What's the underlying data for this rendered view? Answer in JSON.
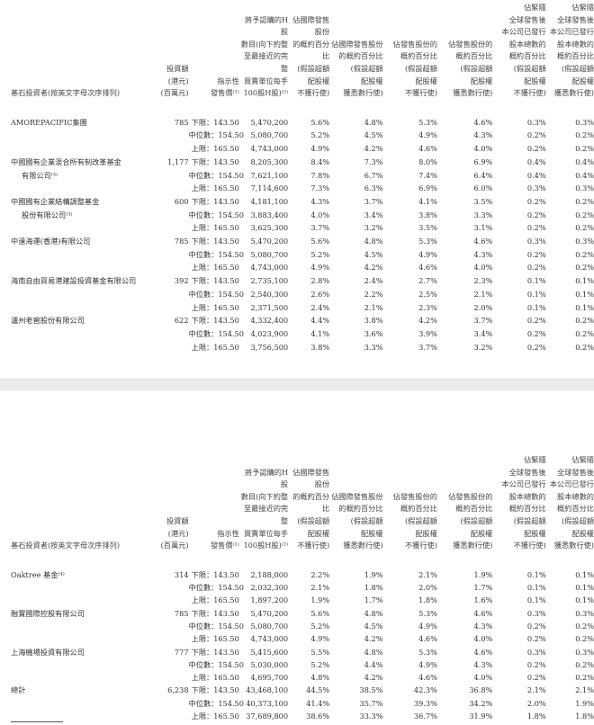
{
  "headers": {
    "name": "基石投資者(按英文字母次序排列)",
    "amount": "投資額(港元)\n(百萬元)",
    "price": "指示性\n發售價⁽¹⁾",
    "shares": "將予認購的H股\n數目(向下約整\n至最接近的完整\n買賣單位每手\n100股H股)⁽²⁾",
    "p1": "佔國際發售股份\n的概約百分比\n(假設超額\n配股權\n不獲行使)",
    "p2": "佔國際發售股份\n的概約百分比\n(假設超額\n配股權\n獲悉數行使)",
    "p3": "佔發售股份的\n概約百分比\n(假設超額\n配股權\n不獲行使)",
    "p4": "佔發售股份的\n概約百分比\n(假設超額\n配股權\n獲悉數行使)",
    "p5": "佔緊隨\n全球發售後\n本公司已發行\n股本總數的\n概約百分比\n(假設超額\n配股權\n不獲行使)",
    "p6": "佔緊隨\n全球發售後\n本公司已發行\n股本總數的\n概約百分比\n(假設超額\n配股權\n獲悉數行使)"
  },
  "tables": [
    {
      "investors": [
        {
          "name_lines": [
            "AMOREPACIFIC集團"
          ],
          "amount": "785",
          "rows": [
            {
              "price": "下限：143.50",
              "shares": "5,470,200",
              "pcts": [
                "5.6%",
                "4.8%",
                "5.3%",
                "4.6%",
                "0.3%",
                "0.3%"
              ]
            },
            {
              "price": "中位數：154.50",
              "shares": "5,080,700",
              "pcts": [
                "5.2%",
                "4.5%",
                "4.9%",
                "4.3%",
                "0.2%",
                "0.2%"
              ]
            },
            {
              "price": "上限：165.50",
              "shares": "4,743,000",
              "pcts": [
                "4.9%",
                "4.2%",
                "4.6%",
                "4.0%",
                "0.2%",
                "0.2%"
              ]
            }
          ]
        },
        {
          "name_lines": [
            "中國國有企業混合所有制改革基金",
            "有限公司⁽³⁾"
          ],
          "amount": "1,177",
          "rows": [
            {
              "price": "下限：143.50",
              "shares": "8,205,300",
              "pcts": [
                "8.4%",
                "7.3%",
                "8.0%",
                "6.9%",
                "0.4%",
                "0.4%"
              ]
            },
            {
              "price": "中位數：154.50",
              "shares": "7,621,100",
              "pcts": [
                "7.8%",
                "6.7%",
                "7.4%",
                "6.4%",
                "0.4%",
                "0.4%"
              ]
            },
            {
              "price": "上限：165.50",
              "shares": "7,114,600",
              "pcts": [
                "7.3%",
                "6.3%",
                "6.9%",
                "6.0%",
                "0.3%",
                "0.3%"
              ]
            }
          ]
        },
        {
          "name_lines": [
            "中國國有企業結構調整基金",
            "股份有限公司⁽³⁾"
          ],
          "amount": "600",
          "rows": [
            {
              "price": "下限：143.50",
              "shares": "4,181,100",
              "pcts": [
                "4.3%",
                "3.7%",
                "4.1%",
                "3.5%",
                "0.2%",
                "0.2%"
              ]
            },
            {
              "price": "中位數：154.50",
              "shares": "3,883,400",
              "pcts": [
                "4.0%",
                "3.4%",
                "3.8%",
                "3.3%",
                "0.2%",
                "0.2%"
              ]
            },
            {
              "price": "上限：165.50",
              "shares": "3,625,300",
              "pcts": [
                "3.7%",
                "3.2%",
                "3.5%",
                "3.1%",
                "0.2%",
                "0.2%"
              ]
            }
          ]
        },
        {
          "name_lines": [
            "中遠海運(香港)有限公司"
          ],
          "amount": "785",
          "rows": [
            {
              "price": "下限：143.50",
              "shares": "5,470,200",
              "pcts": [
                "5.6%",
                "4.8%",
                "5.3%",
                "4.6%",
                "0.3%",
                "0.3%"
              ]
            },
            {
              "price": "中位數：154.50",
              "shares": "5,080,700",
              "pcts": [
                "5.2%",
                "4.5%",
                "4.9%",
                "4.3%",
                "0.2%",
                "0.2%"
              ]
            },
            {
              "price": "上限：165.50",
              "shares": "4,743,000",
              "pcts": [
                "4.9%",
                "4.2%",
                "4.6%",
                "4.0%",
                "0.2%",
                "0.2%"
              ]
            }
          ]
        },
        {
          "name_lines": [
            "海南自由貿易港建設投資基金有限公司"
          ],
          "amount": "392",
          "rows": [
            {
              "price": "下限：143.50",
              "shares": "2,735,100",
              "pcts": [
                "2.8%",
                "2.4%",
                "2.7%",
                "2.3%",
                "0.1%",
                "0.1%"
              ]
            },
            {
              "price": "中位數：154.50",
              "shares": "2,540,300",
              "pcts": [
                "2.6%",
                "2.2%",
                "2.5%",
                "2.1%",
                "0.1%",
                "0.1%"
              ]
            },
            {
              "price": "上限：165.50",
              "shares": "2,371,500",
              "pcts": [
                "2.4%",
                "2.1%",
                "2.3%",
                "2.0%",
                "0.1%",
                "0.1%"
              ]
            }
          ]
        },
        {
          "name_lines": [
            "瀘州老窖股份有限公司"
          ],
          "amount": "622",
          "rows": [
            {
              "price": "下限：143.50",
              "shares": "4,332,400",
              "pcts": [
                "4.4%",
                "3.8%",
                "4.2%",
                "3.7%",
                "0.2%",
                "0.2%"
              ]
            },
            {
              "price": "中位數：154.50",
              "shares": "4,023,900",
              "pcts": [
                "4.1%",
                "3.6%",
                "3.9%",
                "3.4%",
                "0.2%",
                "0.2%"
              ]
            },
            {
              "price": "上限：165.50",
              "shares": "3,756,500",
              "pcts": [
                "3.8%",
                "3.3%",
                "3.7%",
                "3.2%",
                "0.2%",
                "0.2%"
              ]
            }
          ]
        }
      ]
    },
    {
      "investors": [
        {
          "name_lines": [
            "Oaktree 基金⁽⁴⁾"
          ],
          "amount": "314",
          "rows": [
            {
              "price": "下限：143.50",
              "shares": "2,188,000",
              "pcts": [
                "2.2%",
                "1.9%",
                "2.1%",
                "1.9%",
                "0.1%",
                "0.1%"
              ]
            },
            {
              "price": "中位數：154.50",
              "shares": "2,032,300",
              "pcts": [
                "2.1%",
                "1.8%",
                "2.0%",
                "1.7%",
                "0.1%",
                "0.1%"
              ]
            },
            {
              "price": "上限：165.50",
              "shares": "1,897,200",
              "pcts": [
                "1.9%",
                "1.7%",
                "1.8%",
                "1.6%",
                "0.1%",
                "0.1%"
              ]
            }
          ]
        },
        {
          "name_lines": [
            "融實國際控股有限公司"
          ],
          "amount": "785",
          "rows": [
            {
              "price": "下限：143.50",
              "shares": "5,470,200",
              "pcts": [
                "5.6%",
                "4.8%",
                "5.3%",
                "4.6%",
                "0.3%",
                "0.3%"
              ]
            },
            {
              "price": "中位數：154.50",
              "shares": "5,080,700",
              "pcts": [
                "5.2%",
                "4.5%",
                "4.9%",
                "4.3%",
                "0.2%",
                "0.2%"
              ]
            },
            {
              "price": "上限：165.50",
              "shares": "4,743,000",
              "pcts": [
                "4.9%",
                "4.2%",
                "4.6%",
                "4.0%",
                "0.2%",
                "0.2%"
              ]
            }
          ]
        },
        {
          "name_lines": [
            "上海機場投資有限公司"
          ],
          "amount": "777",
          "rows": [
            {
              "price": "下限：143.50",
              "shares": "5,415,600",
              "pcts": [
                "5.5%",
                "4.8%",
                "5.3%",
                "4.6%",
                "0.3%",
                "0.3%"
              ]
            },
            {
              "price": "中位數：154.50",
              "shares": "5,030,000",
              "pcts": [
                "5.2%",
                "4.4%",
                "4.9%",
                "4.3%",
                "0.2%",
                "0.2%"
              ]
            },
            {
              "price": "上限：165.50",
              "shares": "4,695,700",
              "pcts": [
                "4.8%",
                "4.2%",
                "4.6%",
                "4.0%",
                "0.2%",
                "0.2%"
              ]
            }
          ]
        },
        {
          "name_lines": [
            "總計"
          ],
          "amount": "6,238",
          "rows": [
            {
              "price": "下限：143.50",
              "shares": "43,468,100",
              "pcts": [
                "44.5%",
                "38.5%",
                "42.3%",
                "36.8%",
                "2.1%",
                "2.1%"
              ]
            },
            {
              "price": "中位數：154.50",
              "shares": "40,373,100",
              "pcts": [
                "41.4%",
                "35.7%",
                "39.3%",
                "34.2%",
                "2.0%",
                "1.9%"
              ]
            },
            {
              "price": "上限：165.50",
              "shares": "37,689,800",
              "pcts": [
                "38.6%",
                "33.3%",
                "36.7%",
                "31.9%",
                "1.8%",
                "1.8%"
              ]
            }
          ]
        }
      ]
    }
  ]
}
